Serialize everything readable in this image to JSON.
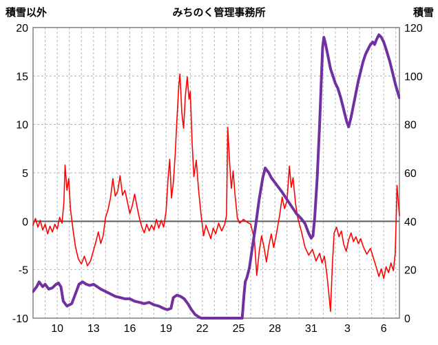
{
  "header": {
    "left_axis_title": "積雪以外",
    "title": "みちのく管理事務所",
    "right_axis_title": "積雪"
  },
  "colors": {
    "red_series": "#ff0000",
    "purple_series": "#7030a0",
    "grid": "#b3b3b3",
    "zero_line": "#595959",
    "frame": "#808080",
    "text": "#000000"
  },
  "chart_data": {
    "type": "line",
    "title": "みちのく管理事務所",
    "left_axis": {
      "label": "積雪以外",
      "min": -10,
      "max": 20,
      "ticks": [
        20,
        15,
        10,
        5,
        0,
        -5,
        -10
      ]
    },
    "right_axis": {
      "label": "積雪",
      "min": 0,
      "max": 120,
      "ticks": [
        120,
        100,
        80,
        60,
        40,
        20,
        0
      ]
    },
    "x_axis": {
      "day_min": 0,
      "day_max": 30.3,
      "gridline_days": [
        1,
        2,
        3,
        4,
        5,
        6,
        7,
        8,
        9,
        10,
        11,
        12,
        13,
        14,
        15,
        16,
        17,
        18,
        19,
        20,
        21,
        22,
        23,
        24,
        25,
        26,
        27,
        28,
        29,
        30
      ],
      "tick_days": [
        2,
        5,
        8,
        11,
        14,
        17,
        20,
        23,
        26,
        29
      ],
      "tick_labels": [
        "10",
        "13",
        "16",
        "19",
        "22",
        "25",
        "28",
        "31",
        "3",
        "6"
      ]
    },
    "series": [
      {
        "name": "積雪以外",
        "axis": "left",
        "color": "#ff0000",
        "width": 1.6,
        "points": [
          [
            0.0,
            -0.4
          ],
          [
            0.2,
            0.3
          ],
          [
            0.4,
            -0.6
          ],
          [
            0.6,
            0.1
          ],
          [
            0.8,
            -0.9
          ],
          [
            1.0,
            -0.3
          ],
          [
            1.2,
            -1.3
          ],
          [
            1.4,
            -0.5
          ],
          [
            1.6,
            -1.1
          ],
          [
            1.8,
            -0.3
          ],
          [
            2.0,
            -0.8
          ],
          [
            2.2,
            0.4
          ],
          [
            2.4,
            -0.2
          ],
          [
            2.55,
            2.0
          ],
          [
            2.65,
            5.8
          ],
          [
            2.8,
            3.2
          ],
          [
            2.95,
            4.4
          ],
          [
            3.1,
            1.2
          ],
          [
            3.3,
            -0.8
          ],
          [
            3.5,
            -2.6
          ],
          [
            3.75,
            -3.9
          ],
          [
            4.0,
            -4.4
          ],
          [
            4.25,
            -3.6
          ],
          [
            4.5,
            -4.6
          ],
          [
            4.75,
            -4.1
          ],
          [
            5.0,
            -3.0
          ],
          [
            5.2,
            -2.1
          ],
          [
            5.4,
            -1.1
          ],
          [
            5.6,
            -2.3
          ],
          [
            5.8,
            -1.5
          ],
          [
            6.0,
            0.4
          ],
          [
            6.2,
            1.2
          ],
          [
            6.4,
            2.4
          ],
          [
            6.6,
            4.4
          ],
          [
            6.8,
            2.6
          ],
          [
            7.0,
            3.1
          ],
          [
            7.2,
            4.7
          ],
          [
            7.4,
            2.7
          ],
          [
            7.6,
            3.2
          ],
          [
            7.8,
            2.0
          ],
          [
            8.0,
            0.8
          ],
          [
            8.2,
            1.6
          ],
          [
            8.4,
            2.8
          ],
          [
            8.6,
            1.5
          ],
          [
            8.8,
            0.3
          ],
          [
            9.0,
            -0.6
          ],
          [
            9.2,
            -1.2
          ],
          [
            9.4,
            -0.3
          ],
          [
            9.6,
            -1.0
          ],
          [
            9.8,
            -0.4
          ],
          [
            10.0,
            -0.9
          ],
          [
            10.2,
            0.2
          ],
          [
            10.4,
            -0.7
          ],
          [
            10.6,
            0.1
          ],
          [
            10.8,
            -0.6
          ],
          [
            11.0,
            1.0
          ],
          [
            11.15,
            4.2
          ],
          [
            11.3,
            6.4
          ],
          [
            11.45,
            2.4
          ],
          [
            11.6,
            4.0
          ],
          [
            11.75,
            6.8
          ],
          [
            11.9,
            10.5
          ],
          [
            12.05,
            14.0
          ],
          [
            12.15,
            15.2
          ],
          [
            12.3,
            11.2
          ],
          [
            12.45,
            9.6
          ],
          [
            12.6,
            13.0
          ],
          [
            12.75,
            14.9
          ],
          [
            12.9,
            12.6
          ],
          [
            13.0,
            13.4
          ],
          [
            13.15,
            8.2
          ],
          [
            13.3,
            4.6
          ],
          [
            13.5,
            6.3
          ],
          [
            13.7,
            3.1
          ],
          [
            13.9,
            0.6
          ],
          [
            14.1,
            -1.5
          ],
          [
            14.3,
            -0.4
          ],
          [
            14.5,
            -1.1
          ],
          [
            14.7,
            -1.8
          ],
          [
            14.9,
            -0.7
          ],
          [
            15.1,
            -1.3
          ],
          [
            15.35,
            -0.2
          ],
          [
            15.6,
            -1.0
          ],
          [
            15.85,
            -0.3
          ],
          [
            16.0,
            0.6
          ],
          [
            16.1,
            9.7
          ],
          [
            16.25,
            6.2
          ],
          [
            16.4,
            3.4
          ],
          [
            16.55,
            5.2
          ],
          [
            16.7,
            2.8
          ],
          [
            16.9,
            0.3
          ],
          [
            17.1,
            -0.2
          ],
          [
            17.4,
            0.2
          ],
          [
            17.7,
            -0.1
          ],
          [
            18.0,
            -0.3
          ],
          [
            18.3,
            -1.8
          ],
          [
            18.5,
            -5.6
          ],
          [
            18.7,
            -3.2
          ],
          [
            18.9,
            -1.5
          ],
          [
            19.1,
            -2.7
          ],
          [
            19.3,
            -4.2
          ],
          [
            19.5,
            -2.5
          ],
          [
            19.7,
            -1.3
          ],
          [
            19.9,
            -2.7
          ],
          [
            20.1,
            -1.5
          ],
          [
            20.4,
            0.7
          ],
          [
            20.6,
            2.5
          ],
          [
            20.8,
            1.3
          ],
          [
            21.0,
            2.1
          ],
          [
            21.2,
            5.7
          ],
          [
            21.35,
            3.5
          ],
          [
            21.5,
            4.5
          ],
          [
            21.7,
            1.9
          ],
          [
            21.9,
            0.3
          ],
          [
            22.2,
            -1.1
          ],
          [
            22.5,
            -2.7
          ],
          [
            22.8,
            -3.5
          ],
          [
            23.1,
            -2.9
          ],
          [
            23.4,
            -4.1
          ],
          [
            23.7,
            -3.3
          ],
          [
            23.9,
            -4.3
          ],
          [
            24.1,
            -3.6
          ],
          [
            24.3,
            -5.5
          ],
          [
            24.5,
            -8.0
          ],
          [
            24.6,
            -9.3
          ],
          [
            24.75,
            -4.5
          ],
          [
            24.9,
            -1.2
          ],
          [
            25.1,
            -0.6
          ],
          [
            25.3,
            -1.6
          ],
          [
            25.5,
            -1.0
          ],
          [
            25.7,
            -2.4
          ],
          [
            25.9,
            -3.1
          ],
          [
            26.1,
            -1.9
          ],
          [
            26.3,
            -1.2
          ],
          [
            26.5,
            -2.1
          ],
          [
            26.7,
            -1.6
          ],
          [
            26.9,
            -2.3
          ],
          [
            27.1,
            -1.8
          ],
          [
            27.3,
            -2.6
          ],
          [
            27.6,
            -3.4
          ],
          [
            27.9,
            -2.8
          ],
          [
            28.1,
            -3.6
          ],
          [
            28.4,
            -4.8
          ],
          [
            28.6,
            -5.7
          ],
          [
            28.8,
            -4.9
          ],
          [
            29.0,
            -5.9
          ],
          [
            29.2,
            -4.7
          ],
          [
            29.4,
            -5.3
          ],
          [
            29.6,
            -4.3
          ],
          [
            29.8,
            -5.1
          ],
          [
            29.95,
            -3.3
          ],
          [
            30.1,
            3.7
          ],
          [
            30.3,
            0.6
          ]
        ]
      },
      {
        "name": "積雪",
        "axis": "right",
        "color": "#7030a0",
        "width": 4,
        "points": [
          [
            0.0,
            11
          ],
          [
            0.3,
            13
          ],
          [
            0.5,
            15
          ],
          [
            0.8,
            13
          ],
          [
            1.0,
            14
          ],
          [
            1.3,
            12
          ],
          [
            1.6,
            12.5
          ],
          [
            1.9,
            14
          ],
          [
            2.1,
            14.5
          ],
          [
            2.3,
            13
          ],
          [
            2.5,
            7
          ],
          [
            2.8,
            5
          ],
          [
            3.0,
            5.5
          ],
          [
            3.2,
            6
          ],
          [
            3.5,
            10
          ],
          [
            3.8,
            14
          ],
          [
            4.1,
            15
          ],
          [
            4.4,
            14
          ],
          [
            4.7,
            13.5
          ],
          [
            5.0,
            14
          ],
          [
            5.3,
            13
          ],
          [
            5.6,
            12
          ],
          [
            6.0,
            11
          ],
          [
            6.4,
            10
          ],
          [
            6.8,
            9
          ],
          [
            7.2,
            8.5
          ],
          [
            7.6,
            8
          ],
          [
            8.0,
            8
          ],
          [
            8.4,
            7
          ],
          [
            8.8,
            6.5
          ],
          [
            9.2,
            6
          ],
          [
            9.6,
            6.5
          ],
          [
            10.0,
            5.5
          ],
          [
            10.4,
            5
          ],
          [
            10.8,
            4
          ],
          [
            11.1,
            3.5
          ],
          [
            11.4,
            4
          ],
          [
            11.6,
            8.5
          ],
          [
            11.9,
            9.5
          ],
          [
            12.2,
            9
          ],
          [
            12.5,
            8
          ],
          [
            12.8,
            6
          ],
          [
            13.1,
            3.5
          ],
          [
            13.4,
            1.5
          ],
          [
            13.7,
            0.5
          ],
          [
            13.9,
            0
          ],
          [
            14.5,
            0
          ],
          [
            15.0,
            0
          ],
          [
            15.5,
            0
          ],
          [
            16.0,
            0
          ],
          [
            16.5,
            0
          ],
          [
            17.0,
            0
          ],
          [
            17.3,
            0
          ],
          [
            17.45,
            10
          ],
          [
            17.55,
            15
          ],
          [
            17.7,
            17
          ],
          [
            17.9,
            21
          ],
          [
            18.1,
            28
          ],
          [
            18.4,
            38
          ],
          [
            18.7,
            49
          ],
          [
            19.0,
            58
          ],
          [
            19.2,
            62
          ],
          [
            19.35,
            61
          ],
          [
            19.5,
            60
          ],
          [
            19.7,
            58
          ],
          [
            20.0,
            56
          ],
          [
            20.3,
            54
          ],
          [
            20.6,
            52
          ],
          [
            21.0,
            49
          ],
          [
            21.4,
            46
          ],
          [
            21.8,
            43
          ],
          [
            22.2,
            41
          ],
          [
            22.5,
            39
          ],
          [
            22.8,
            35
          ],
          [
            23.0,
            33
          ],
          [
            23.15,
            34
          ],
          [
            23.3,
            42
          ],
          [
            23.5,
            58
          ],
          [
            23.7,
            80
          ],
          [
            23.85,
            100
          ],
          [
            23.95,
            112
          ],
          [
            24.05,
            116
          ],
          [
            24.2,
            113
          ],
          [
            24.4,
            108
          ],
          [
            24.6,
            103
          ],
          [
            24.8,
            100
          ],
          [
            25.0,
            97
          ],
          [
            25.2,
            95
          ],
          [
            25.45,
            91
          ],
          [
            25.7,
            86
          ],
          [
            25.95,
            81
          ],
          [
            26.1,
            79
          ],
          [
            26.3,
            83
          ],
          [
            26.5,
            88
          ],
          [
            26.7,
            93
          ],
          [
            26.9,
            98
          ],
          [
            27.1,
            102
          ],
          [
            27.3,
            106
          ],
          [
            27.5,
            109
          ],
          [
            27.7,
            111
          ],
          [
            27.9,
            113
          ],
          [
            28.1,
            114
          ],
          [
            28.25,
            113
          ],
          [
            28.4,
            115
          ],
          [
            28.6,
            117
          ],
          [
            28.8,
            116
          ],
          [
            29.0,
            114
          ],
          [
            29.2,
            111
          ],
          [
            29.5,
            106
          ],
          [
            29.8,
            100
          ],
          [
            30.0,
            96
          ],
          [
            30.3,
            91
          ]
        ]
      }
    ]
  }
}
